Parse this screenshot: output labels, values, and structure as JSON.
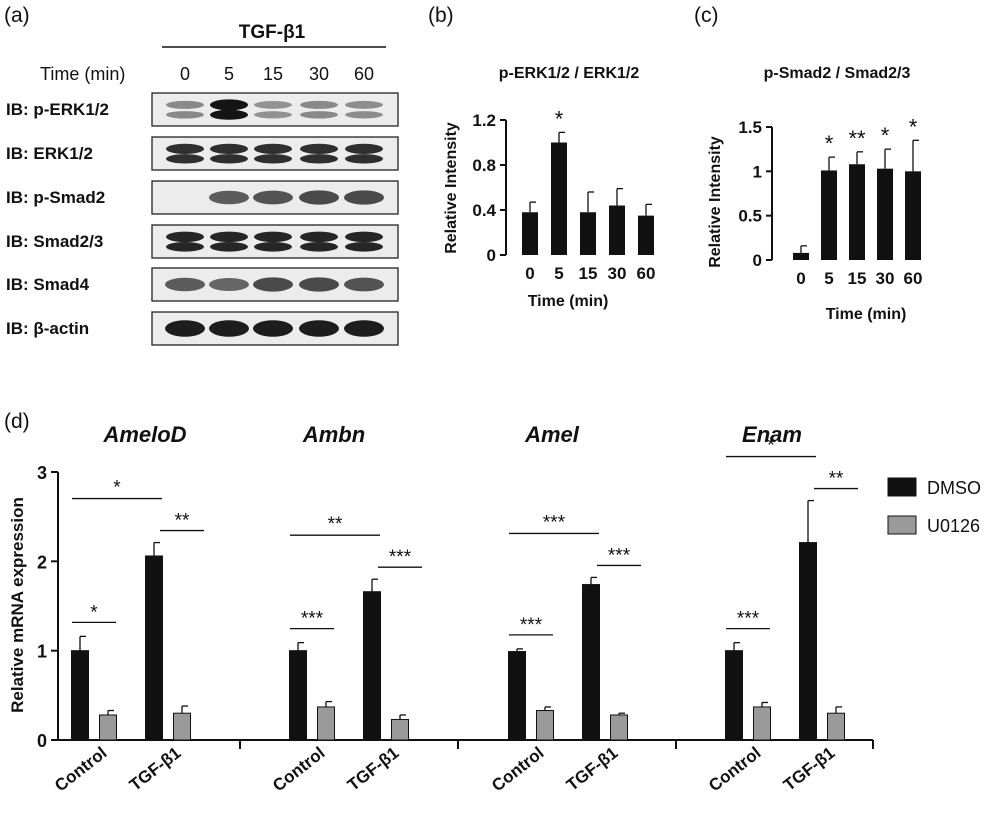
{
  "panel_labels": [
    "(a)",
    "(b)",
    "(c)",
    "(d)"
  ],
  "blot": {
    "treatment": "TGF-β1",
    "time_label": "Time (min)",
    "time_points": [
      "0",
      "5",
      "15",
      "30",
      "60"
    ],
    "rows": [
      {
        "label": "IB: p-ERK1/2",
        "intensity": [
          0.35,
          1.0,
          0.3,
          0.35,
          0.33
        ],
        "double": true
      },
      {
        "label": "IB: ERK1/2",
        "intensity": [
          0.85,
          0.85,
          0.85,
          0.85,
          0.85
        ],
        "double": true
      },
      {
        "label": "IB: p-Smad2",
        "intensity": [
          0.0,
          0.6,
          0.65,
          0.7,
          0.7
        ],
        "double": false
      },
      {
        "label": "IB: Smad2/3",
        "intensity": [
          0.9,
          0.9,
          0.9,
          0.9,
          0.9
        ],
        "double": true
      },
      {
        "label": "IB: Smad4",
        "intensity": [
          0.6,
          0.55,
          0.7,
          0.7,
          0.65
        ],
        "double": false
      },
      {
        "label": "IB: β-actin",
        "intensity": [
          0.95,
          0.95,
          0.95,
          0.95,
          0.95
        ],
        "double": false
      }
    ]
  },
  "chart_data": [
    {
      "id": "b",
      "type": "bar",
      "title": "p-ERK1/2 / ERK1/2",
      "xlabel": "Time (min)",
      "ylabel": "Relative Intensity",
      "categories": [
        "0",
        "5",
        "15",
        "30",
        "60"
      ],
      "values": [
        0.38,
        1.0,
        0.38,
        0.44,
        0.35
      ],
      "errors": [
        0.09,
        0.09,
        0.18,
        0.15,
        0.1
      ],
      "significance": [
        "",
        "*",
        "",
        "",
        ""
      ],
      "ylim": [
        0,
        1.2
      ],
      "yticks": [
        "0",
        "0.4",
        "0.8",
        "1.2"
      ]
    },
    {
      "id": "c",
      "type": "bar",
      "title": "p-Smad2 / Smad2/3",
      "xlabel": "Time (min)",
      "ylabel": "Relative Intensity",
      "categories": [
        "0",
        "5",
        "15",
        "30",
        "60"
      ],
      "values": [
        0.08,
        1.01,
        1.08,
        1.03,
        1.0
      ],
      "errors": [
        0.08,
        0.15,
        0.14,
        0.22,
        0.35
      ],
      "significance": [
        "",
        "*",
        "**",
        "*",
        "*"
      ],
      "ylim": [
        0,
        1.5
      ],
      "yticks": [
        "0",
        "0.5",
        "1",
        "1.5"
      ]
    },
    {
      "id": "d",
      "type": "bar",
      "ylabel": "Relative mRNA expression",
      "ylim": [
        0,
        3
      ],
      "yticks": [
        "0",
        "1",
        "2",
        "3"
      ],
      "legend": [
        {
          "name": "DMSO",
          "color": "#111111"
        },
        {
          "name": "U0126",
          "color": "#9a9a9a"
        }
      ],
      "groups": [
        {
          "gene": "AmeloD",
          "categories": [
            "Control",
            "TGF-β1"
          ],
          "DMSO": [
            1.0,
            2.06
          ],
          "DMSO_err": [
            0.16,
            0.15
          ],
          "U0126": [
            0.28,
            0.3
          ],
          "U0126_err": [
            0.05,
            0.08
          ],
          "sig_ctrl": "*",
          "sig_tgf": "**",
          "sig_cross": "*"
        },
        {
          "gene": "Ambn",
          "categories": [
            "Control",
            "TGF-β1"
          ],
          "DMSO": [
            1.0,
            1.66
          ],
          "DMSO_err": [
            0.09,
            0.14
          ],
          "U0126": [
            0.37,
            0.23
          ],
          "U0126_err": [
            0.06,
            0.05
          ],
          "sig_ctrl": "***",
          "sig_tgf": "***",
          "sig_cross": "**"
        },
        {
          "gene": "Amel",
          "categories": [
            "Control",
            "TGF-β1"
          ],
          "DMSO": [
            0.99,
            1.74
          ],
          "DMSO_err": [
            0.03,
            0.08
          ],
          "U0126": [
            0.33,
            0.28
          ],
          "U0126_err": [
            0.04,
            0.02
          ],
          "sig_ctrl": "***",
          "sig_tgf": "***",
          "sig_cross": "***"
        },
        {
          "gene": "Enam",
          "categories": [
            "Control",
            "TGF-β1"
          ],
          "DMSO": [
            1.0,
            2.21
          ],
          "DMSO_err": [
            0.09,
            0.47
          ],
          "U0126": [
            0.37,
            0.3
          ],
          "U0126_err": [
            0.05,
            0.07
          ],
          "sig_ctrl": "***",
          "sig_tgf": "**",
          "sig_cross": "*"
        }
      ]
    }
  ]
}
